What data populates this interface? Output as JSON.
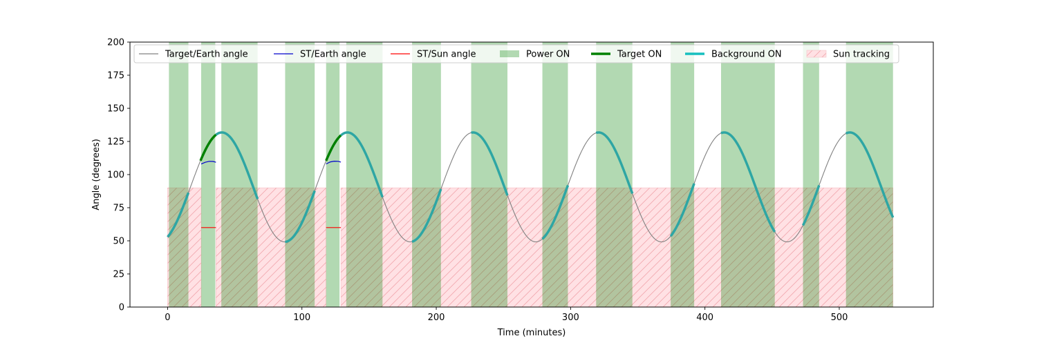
{
  "chart_data": {
    "type": "line",
    "xlabel": "Time (minutes)",
    "ylabel": "Angle (degrees)",
    "xlim": [
      -28,
      570
    ],
    "ylim": [
      0,
      200
    ],
    "xticks": [
      0,
      100,
      200,
      300,
      400,
      500
    ],
    "yticks": [
      0,
      25,
      50,
      75,
      100,
      125,
      150,
      175,
      200
    ],
    "grid": false,
    "legend_position": "top",
    "target_earth_curve": {
      "center": 90.5,
      "amplitude": 41.3,
      "period_minutes": 93.5,
      "phase_minutes": 17.0,
      "x_range": [
        0,
        540
      ]
    },
    "series": [
      {
        "name": "Target/Earth angle",
        "color": "#808080",
        "style": "line",
        "segments": [
          [
            0,
            540
          ]
        ]
      },
      {
        "name": "ST/Earth angle",
        "color": "#0000cc",
        "style": "line",
        "points": [
          [
            [
              25,
              108
            ],
            [
              28,
              109.3
            ],
            [
              31,
              110
            ],
            [
              34,
              109.9
            ],
            [
              36,
              109.3
            ]
          ],
          [
            [
              118,
              108
            ],
            [
              121,
              109.5
            ],
            [
              124,
              110.1
            ],
            [
              127,
              110
            ],
            [
              129,
              109.4
            ]
          ]
        ]
      },
      {
        "name": "ST/Sun angle",
        "color": "#ff0000",
        "style": "line",
        "points": [
          [
            [
              25,
              60
            ],
            [
              36,
              60
            ]
          ],
          [
            [
              118,
              60
            ],
            [
              129,
              60
            ]
          ]
        ]
      },
      {
        "name": "Power ON",
        "color": "#008000",
        "style": "span",
        "intervals": [
          [
            1,
            15.5
          ],
          [
            25,
            35.5
          ],
          [
            40,
            67
          ],
          [
            87.5,
            109.5
          ],
          [
            118,
            128
          ],
          [
            133,
            160
          ],
          [
            182,
            203.5
          ],
          [
            226,
            253
          ],
          [
            279,
            298
          ],
          [
            319,
            346
          ],
          [
            374.5,
            392
          ],
          [
            412,
            452
          ],
          [
            473,
            485
          ],
          [
            505,
            540
          ]
        ]
      },
      {
        "name": "Target ON",
        "color": "#008000",
        "style": "thick-line",
        "segments": [
          [
            24.5,
            36
          ],
          [
            118,
            129
          ]
        ]
      },
      {
        "name": "Background ON",
        "color": "#00bfbf",
        "style": "thick-line",
        "segments": [
          [
            0,
            15.5
          ],
          [
            36,
            67
          ],
          [
            87.5,
            109.5
          ],
          [
            129,
            160
          ],
          [
            182,
            203.5
          ],
          [
            226,
            253
          ],
          [
            279,
            298
          ],
          [
            319,
            346
          ],
          [
            374.5,
            392
          ],
          [
            412,
            452
          ],
          [
            473,
            485
          ],
          [
            505,
            540
          ]
        ]
      },
      {
        "name": "Sun tracking",
        "color": "#ff9999",
        "style": "hatched-span",
        "ymax": 90,
        "intervals": [
          [
            0,
            25
          ],
          [
            36,
            118
          ],
          [
            129,
            540
          ]
        ]
      }
    ]
  }
}
